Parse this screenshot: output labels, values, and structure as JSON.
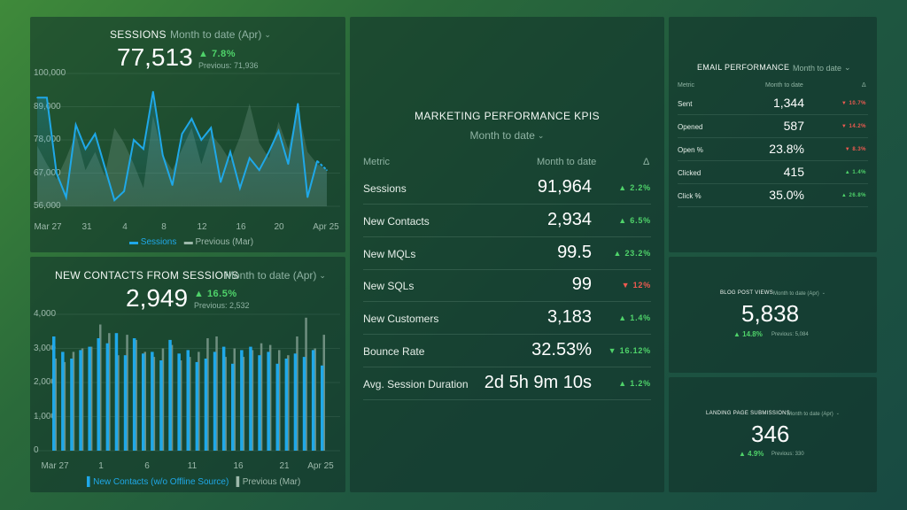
{
  "sessions": {
    "title": "SESSIONS",
    "period": "Month to date (Apr)",
    "value": "77,513",
    "delta": "▲ 7.8%",
    "previous": "Previous: 71,936",
    "legend_current": "Sessions",
    "legend_previous": "Previous (Mar)"
  },
  "contacts": {
    "title": "NEW CONTACTS FROM SESSIONS",
    "period": "Month to date (Apr)",
    "value": "2,949",
    "delta": "▲ 16.5%",
    "previous": "Previous: 2,532",
    "legend_current": "New Contacts (w/o Offline Source)",
    "legend_previous": "Previous (Mar)"
  },
  "kpis": {
    "title": "MARKETING PERFORMANCE KPIS",
    "period": "Month to date",
    "col_metric": "Metric",
    "col_value": "Month to date",
    "col_delta": "Δ",
    "rows": [
      {
        "metric": "Sessions",
        "value": "91,964",
        "delta": "▲ 2.2%",
        "dir": "up"
      },
      {
        "metric": "New Contacts",
        "value": "2,934",
        "delta": "▲ 6.5%",
        "dir": "up"
      },
      {
        "metric": "New MQLs",
        "value": "99.5",
        "delta": "▲ 23.2%",
        "dir": "up"
      },
      {
        "metric": "New SQLs",
        "value": "99",
        "delta": "▼ 12%",
        "dir": "down"
      },
      {
        "metric": "New Customers",
        "value": "3,183",
        "delta": "▲ 1.4%",
        "dir": "up"
      },
      {
        "metric": "Bounce Rate",
        "value": "32.53%",
        "delta": "▼ 16.12%",
        "dir": "up"
      },
      {
        "metric": "Avg. Session Duration",
        "value": "2d 5h 9m 10s",
        "delta": "▲ 1.2%",
        "dir": "up"
      }
    ]
  },
  "email": {
    "title": "EMAIL PERFORMANCE",
    "period": "Month to date",
    "col_metric": "Metric",
    "col_value": "Month to date",
    "col_delta": "Δ",
    "rows": [
      {
        "metric": "Sent",
        "value": "1,344",
        "delta": "▼ 10.7%",
        "dir": "down"
      },
      {
        "metric": "Opened",
        "value": "587",
        "delta": "▼ 14.2%",
        "dir": "down"
      },
      {
        "metric": "Open %",
        "value": "23.8%",
        "delta": "▼ 8.3%",
        "dir": "down"
      },
      {
        "metric": "Clicked",
        "value": "415",
        "delta": "▲ 1.4%",
        "dir": "up"
      },
      {
        "metric": "Click %",
        "value": "35.0%",
        "delta": "▲ 26.8%",
        "dir": "up"
      }
    ]
  },
  "blog": {
    "title": "BLOG POST VIEWS",
    "period": "Month to date (Apr)",
    "value": "5,838",
    "delta": "▲ 14.8%",
    "previous": "Previous: 5,084"
  },
  "landing": {
    "title": "LANDING PAGE SUBMISSIONS",
    "period": "Month to date (Apr)",
    "value": "346",
    "delta": "▲ 4.9%",
    "previous": "Previous: 330"
  },
  "colors": {
    "current": "#1fa8e8",
    "previous": "#6f8f80",
    "up": "#4fd36a",
    "down": "#ef5a50"
  },
  "chart_data": [
    {
      "type": "line",
      "yticks": [
        "100,000",
        "89,000",
        "78,000",
        "67,000",
        "56,000"
      ],
      "xticks": [
        "Mar 27",
        "31",
        "4",
        "8",
        "12",
        "16",
        "20",
        "Apr 25"
      ],
      "ylim": [
        56000,
        100000
      ],
      "series": [
        {
          "name": "Sessions",
          "values": [
            92000,
            92000,
            67000,
            59000,
            83000,
            75000,
            80000,
            69000,
            58000,
            61000,
            78000,
            75000,
            94000,
            73000,
            63000,
            80000,
            85000,
            78000,
            82000,
            64000,
            74000,
            62000,
            72000,
            68000,
            74000,
            81000,
            70000,
            90000,
            59000,
            71000,
            68000
          ]
        },
        {
          "name": "Previous (Mar)",
          "values": [
            76000,
            70000,
            65000,
            72000,
            80000,
            68000,
            74000,
            66000,
            82000,
            77000,
            70000,
            62000,
            86000,
            73000,
            68000,
            75000,
            82000,
            70000,
            80000,
            76000,
            71000,
            79000,
            90000,
            77000,
            72000,
            84000,
            75000,
            88000,
            74000,
            70000,
            68000
          ]
        }
      ]
    },
    {
      "type": "bar",
      "yticks": [
        "4,000",
        "3,000",
        "2,000",
        "1,000",
        "0"
      ],
      "xticks": [
        "Mar 27",
        "1",
        "6",
        "11",
        "16",
        "21",
        "Apr 25"
      ],
      "ylim": [
        0,
        4000
      ],
      "series": [
        {
          "name": "New Contacts (w/o Offline Source)",
          "values": [
            3350,
            2900,
            2700,
            2950,
            3050,
            3300,
            3150,
            3450,
            2800,
            3300,
            2850,
            2900,
            2650,
            3250,
            2850,
            2950,
            2600,
            2700,
            2900,
            3050,
            2550,
            2950,
            3050,
            2800,
            2900,
            2550,
            2700,
            2850,
            2750,
            2950,
            2500
          ]
        },
        {
          "name": "Previous (Mar)",
          "values": [
            2700,
            2600,
            2900,
            3000,
            3050,
            3700,
            3450,
            2800,
            3400,
            3250,
            2900,
            2750,
            3000,
            3100,
            2650,
            2750,
            2900,
            3300,
            3350,
            2750,
            3000,
            2750,
            2950,
            3150,
            3100,
            2950,
            2800,
            3350,
            3900,
            3000,
            3400
          ]
        }
      ]
    }
  ]
}
